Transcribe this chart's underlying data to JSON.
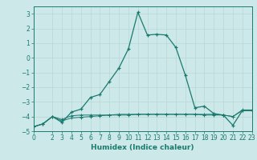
{
  "xlabel": "Humidex (Indice chaleur)",
  "ylabel": "",
  "xlim": [
    0,
    23
  ],
  "ylim": [
    -5,
    3.5
  ],
  "yticks": [
    -5,
    -4,
    -3,
    -2,
    -1,
    0,
    1,
    2,
    3
  ],
  "xticks": [
    0,
    2,
    3,
    4,
    5,
    6,
    7,
    8,
    9,
    10,
    11,
    12,
    13,
    14,
    15,
    16,
    17,
    18,
    19,
    20,
    21,
    22,
    23
  ],
  "bg_color": "#cce8e8",
  "line_color": "#1a7a6e",
  "grid_color": "#b8d8d8",
  "line1_x": [
    0,
    1,
    2,
    3,
    4,
    5,
    6,
    7,
    8,
    9,
    10,
    11,
    12,
    13,
    14,
    15,
    16,
    17,
    18,
    19,
    20,
    21,
    22,
    23
  ],
  "line1_y": [
    -4.7,
    -4.5,
    -4.0,
    -4.4,
    -3.7,
    -3.5,
    -2.7,
    -2.5,
    -1.6,
    -0.7,
    0.6,
    3.1,
    1.55,
    1.6,
    1.55,
    0.7,
    -1.2,
    -3.4,
    -3.3,
    -3.8,
    -3.9,
    -4.6,
    -3.6,
    -3.6
  ],
  "line2_x": [
    0,
    1,
    2,
    3,
    4,
    5,
    6,
    7,
    8,
    9,
    10,
    11,
    12,
    13,
    14,
    15,
    16,
    17,
    18,
    19,
    20,
    21,
    22,
    23
  ],
  "line2_y": [
    -4.7,
    -4.5,
    -4.0,
    -4.3,
    -4.1,
    -4.05,
    -4.0,
    -3.95,
    -3.9,
    -3.85,
    -3.85,
    -3.85,
    -3.85,
    -3.85,
    -3.85,
    -3.85,
    -3.85,
    -3.85,
    -3.9,
    -3.9,
    -3.9,
    -4.0,
    -3.55,
    -3.55
  ],
  "line3_x": [
    0,
    1,
    2,
    3,
    4,
    5,
    6,
    7,
    8,
    9,
    10,
    11,
    12,
    13,
    14,
    15,
    16,
    17,
    18,
    19,
    20,
    21,
    22,
    23
  ],
  "line3_y": [
    -4.7,
    -4.5,
    -4.0,
    -4.2,
    -3.95,
    -3.9,
    -3.9,
    -3.9,
    -3.9,
    -3.9,
    -3.9,
    -3.85,
    -3.85,
    -3.85,
    -3.85,
    -3.85,
    -3.85,
    -3.85,
    -3.85,
    -3.85,
    -3.9,
    -4.0,
    -3.6,
    -3.6
  ]
}
